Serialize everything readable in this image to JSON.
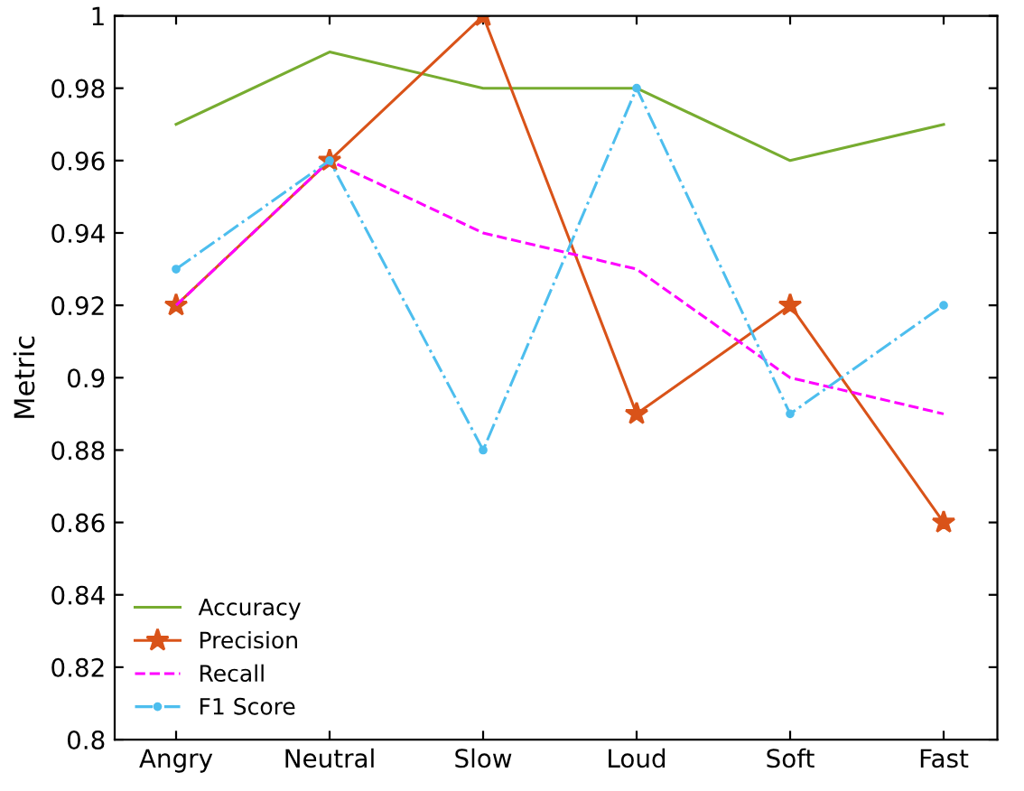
{
  "chart_data": {
    "type": "line",
    "ylabel": "Metric",
    "categories": [
      "Angry",
      "Neutral",
      "Slow",
      "Loud",
      "Soft",
      "Fast"
    ],
    "series": [
      {
        "name": "Accuracy",
        "color": "#77ac30",
        "values": [
          0.97,
          0.99,
          0.98,
          0.98,
          0.96,
          0.97
        ],
        "marker": "none",
        "line_style": "solid"
      },
      {
        "name": "Precision",
        "color": "#d95319",
        "values": [
          0.92,
          0.96,
          1.0,
          0.89,
          0.92,
          0.86
        ],
        "marker": "star",
        "line_style": "solid"
      },
      {
        "name": "Recall",
        "color": "#ff00ff",
        "values": [
          0.92,
          0.96,
          0.94,
          0.93,
          0.9,
          0.89
        ],
        "marker": "none",
        "line_style": "dashed"
      },
      {
        "name": "F1 Score",
        "color": "#4dbeee",
        "values": [
          0.93,
          0.96,
          0.88,
          0.98,
          0.89,
          0.92
        ],
        "marker": "circle",
        "line_style": "dashdot"
      }
    ],
    "ylim": [
      0.8,
      1
    ],
    "yticks": [
      0.8,
      0.82,
      0.84,
      0.86,
      0.88,
      0.9,
      0.92,
      0.94,
      0.96,
      0.98,
      1
    ],
    "grid": false,
    "legend": "bottom left"
  }
}
